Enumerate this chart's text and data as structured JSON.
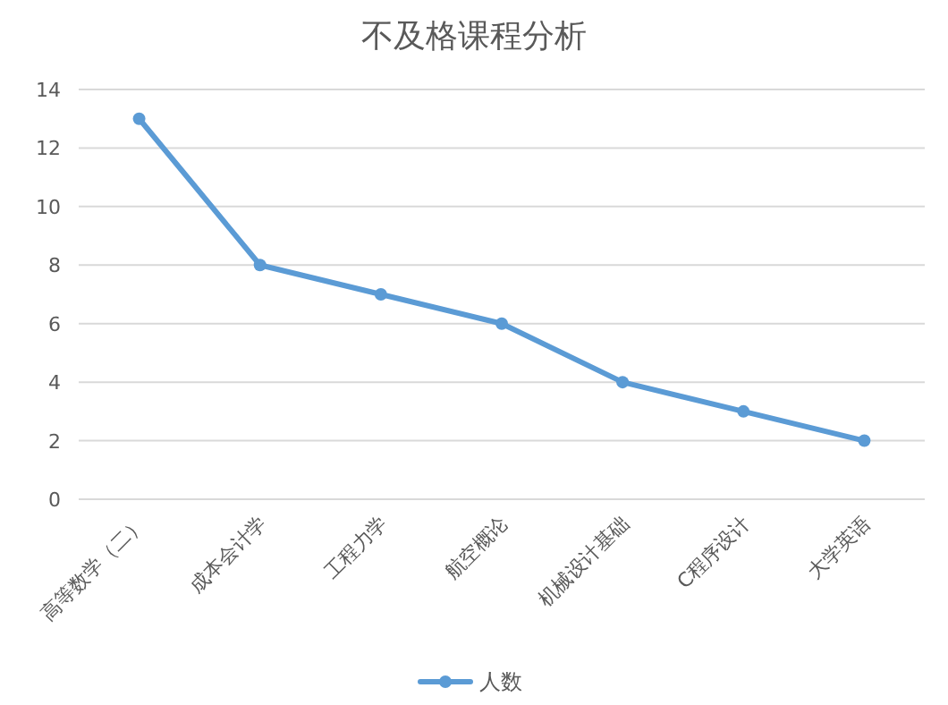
{
  "chart_data": {
    "type": "line",
    "title": "不及格课程分析",
    "categories": [
      "高等数学（二）",
      "成本会计学",
      "工程力学",
      "航空概论",
      "机械设计基础",
      "C程序设计",
      "大学英语"
    ],
    "series": [
      {
        "name": "人数",
        "color": "#5b9bd5",
        "values": [
          13,
          8,
          7,
          6,
          4,
          3,
          2
        ]
      }
    ],
    "ylim": [
      0,
      14
    ],
    "yticks": [
      0,
      2,
      4,
      6,
      8,
      10,
      12,
      14
    ],
    "grid": "y",
    "legend": "bottom",
    "marker": "circle",
    "line_style": "solid"
  }
}
